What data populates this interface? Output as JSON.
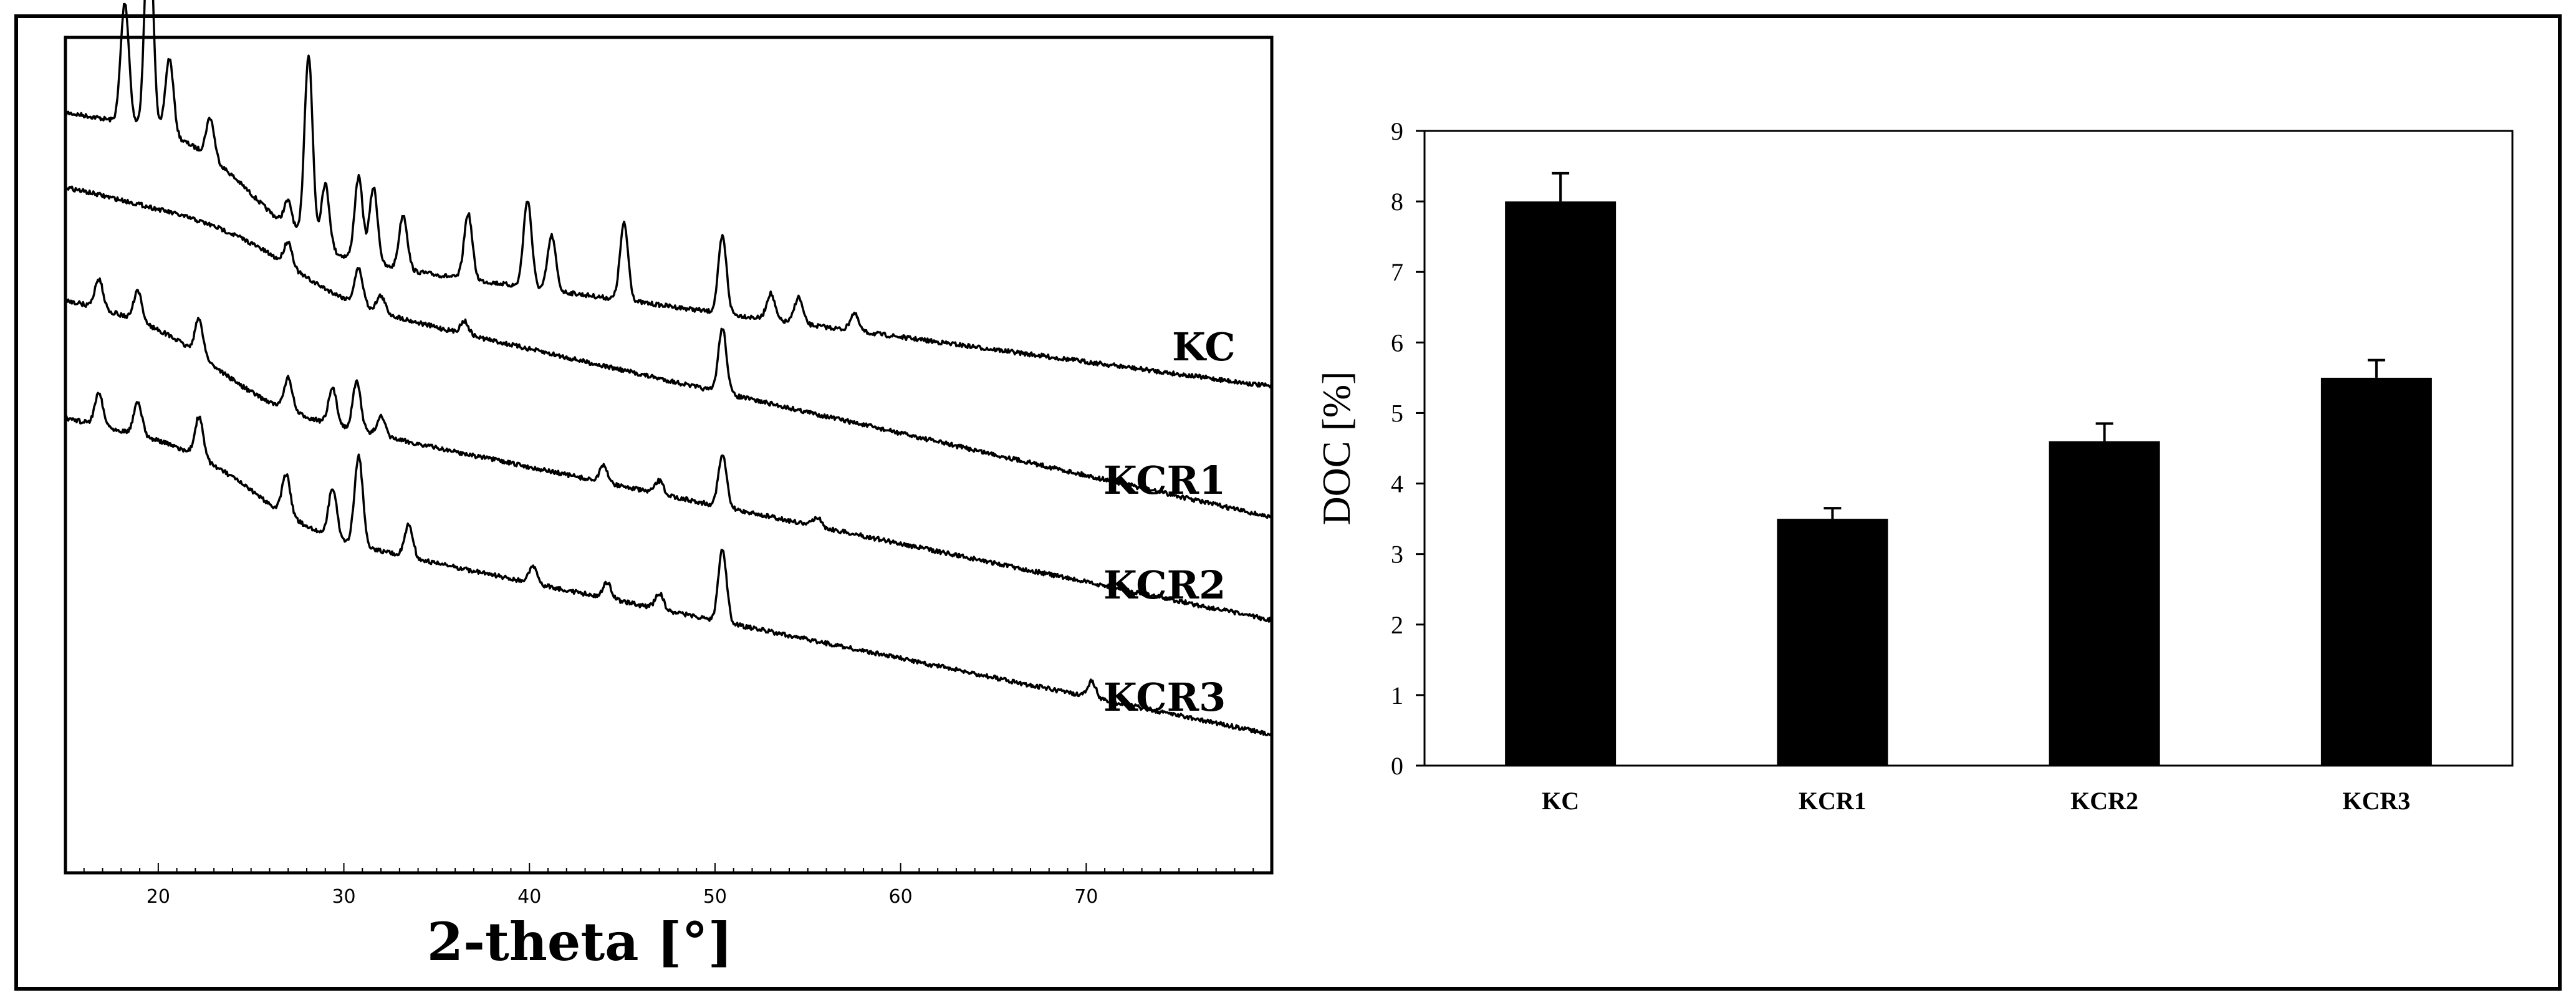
{
  "chart_data": [
    {
      "type": "line",
      "xlabel": "2-theta [°]",
      "ylabel": "",
      "xlim": [
        15,
        80
      ],
      "x_ticks": [
        20,
        30,
        40,
        50,
        60,
        70
      ],
      "grid": false,
      "series": [
        {
          "name": "KC",
          "peaks": [
            {
              "x": 18.2,
              "h": 0.55
            },
            {
              "x": 19.5,
              "h": 1.0
            },
            {
              "x": 20.6,
              "h": 0.35
            },
            {
              "x": 22.8,
              "h": 0.18
            },
            {
              "x": 27.0,
              "h": 0.12
            },
            {
              "x": 28.1,
              "h": 0.85
            },
            {
              "x": 29.0,
              "h": 0.3
            },
            {
              "x": 30.8,
              "h": 0.38
            },
            {
              "x": 31.6,
              "h": 0.35
            },
            {
              "x": 33.2,
              "h": 0.25
            },
            {
              "x": 36.7,
              "h": 0.3
            },
            {
              "x": 39.9,
              "h": 0.4
            },
            {
              "x": 41.2,
              "h": 0.25
            },
            {
              "x": 45.1,
              "h": 0.35
            },
            {
              "x": 50.4,
              "h": 0.35
            },
            {
              "x": 53.0,
              "h": 0.12
            },
            {
              "x": 54.5,
              "h": 0.12
            },
            {
              "x": 57.5,
              "h": 0.08
            }
          ]
        },
        {
          "name": "KCR1",
          "peaks": [
            {
              "x": 27.0,
              "h": 0.15
            },
            {
              "x": 30.8,
              "h": 0.22
            },
            {
              "x": 32.0,
              "h": 0.1
            },
            {
              "x": 36.5,
              "h": 0.08
            },
            {
              "x": 50.4,
              "h": 0.4
            }
          ]
        },
        {
          "name": "KCR2",
          "peaks": [
            {
              "x": 16.8,
              "h": 0.18
            },
            {
              "x": 18.9,
              "h": 0.18
            },
            {
              "x": 22.2,
              "h": 0.22
            },
            {
              "x": 27.0,
              "h": 0.2
            },
            {
              "x": 29.4,
              "h": 0.22
            },
            {
              "x": 30.7,
              "h": 0.3
            },
            {
              "x": 32.0,
              "h": 0.12
            },
            {
              "x": 44.0,
              "h": 0.1
            },
            {
              "x": 47.0,
              "h": 0.08
            },
            {
              "x": 50.4,
              "h": 0.32
            },
            {
              "x": 55.5,
              "h": 0.06
            }
          ]
        },
        {
          "name": "KCR3",
          "peaks": [
            {
              "x": 16.8,
              "h": 0.2
            },
            {
              "x": 18.9,
              "h": 0.2
            },
            {
              "x": 22.2,
              "h": 0.25
            },
            {
              "x": 26.9,
              "h": 0.25
            },
            {
              "x": 29.4,
              "h": 0.3
            },
            {
              "x": 30.8,
              "h": 0.55
            },
            {
              "x": 33.5,
              "h": 0.2
            },
            {
              "x": 40.2,
              "h": 0.1
            },
            {
              "x": 44.2,
              "h": 0.1
            },
            {
              "x": 47.0,
              "h": 0.1
            },
            {
              "x": 50.4,
              "h": 0.45
            },
            {
              "x": 70.3,
              "h": 0.1
            }
          ]
        }
      ]
    },
    {
      "type": "bar",
      "categories": [
        "KC",
        "KCR1",
        "KCR2",
        "KCR3"
      ],
      "values": [
        8.0,
        3.5,
        4.6,
        5.5
      ],
      "errors": [
        0.4,
        0.15,
        0.25,
        0.25
      ],
      "ylabel": "DOC [%]",
      "xlabel": "",
      "ylim": [
        0,
        9
      ],
      "y_ticks": [
        0,
        1,
        2,
        3,
        4,
        5,
        6,
        7,
        8,
        9
      ],
      "grid": false,
      "color": "#000000"
    }
  ]
}
